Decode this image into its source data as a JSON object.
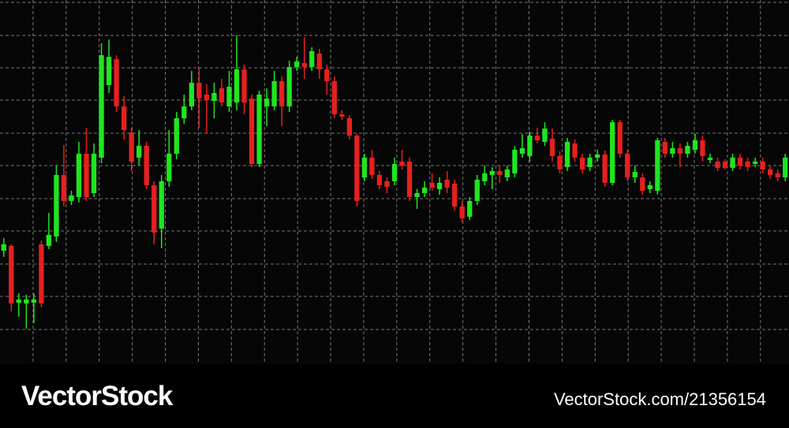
{
  "chart_data": {
    "type": "candlestick",
    "up_color": "#1fe61f",
    "down_color": "#e6201f",
    "background": "#060606",
    "grid": true,
    "xlim": [
      0,
      105
    ],
    "ylim": [
      0,
      462
    ],
    "xticks": [
      4.4,
      8.8,
      13.2,
      17.6,
      22,
      26.4,
      30.8,
      35.2,
      39.6,
      44,
      48.4,
      52.8,
      57.2,
      61.6,
      66,
      70.4,
      74.8,
      79.2,
      83.6,
      88,
      92.4,
      96.8,
      101.2
    ],
    "yticks": [
      44,
      86,
      127,
      169,
      210,
      252,
      293,
      335,
      376,
      417,
      459
    ],
    "open": [
      144,
      150,
      78,
      77,
      78,
      152,
      150,
      162,
      240,
      207,
      212,
      267,
      217,
      262,
      354,
      387,
      327,
      294,
      262,
      277,
      227,
      172,
      232,
      267,
      312,
      327,
      357,
      342,
      334,
      350,
      327,
      332,
      374,
      337,
      254,
      327,
      327,
      359,
      327,
      377,
      382,
      377,
      394,
      374,
      359,
      317,
      312,
      290,
      237,
      262,
      240,
      232,
      232,
      257,
      257,
      212,
      217,
      230,
      222,
      234,
      229,
      200,
      187,
      207,
      232,
      240,
      245,
      237,
      242,
      267,
      264,
      290,
      282,
      286,
      264,
      250,
      280,
      262,
      250,
      262,
      266,
      230,
      307,
      267,
      237,
      237,
      222,
      220,
      282,
      267,
      274,
      267,
      272,
      284,
      259,
      257,
      257,
      249,
      262,
      257,
      254,
      257,
      247,
      242,
      237
    ],
    "high": [
      160,
      152,
      90,
      88,
      90,
      157,
      192,
      252,
      278,
      220,
      282,
      300,
      280,
      407,
      412,
      392,
      340,
      300,
      297,
      282,
      232,
      240,
      297,
      320,
      342,
      372,
      375,
      355,
      357,
      362,
      372,
      417,
      380,
      342,
      347,
      350,
      372,
      365,
      385,
      390,
      415,
      402,
      400,
      380,
      365,
      322,
      316,
      292,
      267,
      272,
      245,
      237,
      262,
      272,
      262,
      222,
      232,
      242,
      237,
      245,
      234,
      207,
      212,
      240,
      252,
      250,
      252,
      252,
      277,
      292,
      295,
      300,
      307,
      299,
      270,
      287,
      285,
      267,
      267,
      272,
      271,
      310,
      310,
      272,
      252,
      242,
      232,
      287,
      287,
      282,
      280,
      282,
      292,
      290,
      267,
      262,
      260,
      267,
      267,
      262,
      262,
      262,
      252,
      247,
      267
    ],
    "low": [
      136,
      67,
      60,
      45,
      52,
      72,
      146,
      155,
      200,
      202,
      205,
      207,
      212,
      255,
      344,
      320,
      285,
      245,
      252,
      222,
      152,
      147,
      225,
      260,
      305,
      322,
      300,
      292,
      312,
      327,
      320,
      322,
      317,
      250,
      250,
      302,
      322,
      302,
      320,
      372,
      362,
      372,
      362,
      342,
      312,
      310,
      285,
      200,
      232,
      235,
      222,
      217,
      227,
      247,
      207,
      197,
      212,
      220,
      215,
      217,
      195,
      180,
      183,
      202,
      227,
      222,
      230,
      232,
      237,
      262,
      257,
      280,
      277,
      257,
      242,
      245,
      257,
      242,
      245,
      257,
      225,
      227,
      262,
      232,
      230,
      215,
      217,
      215,
      262,
      262,
      250,
      262,
      267,
      257,
      255,
      245,
      247,
      245,
      247,
      245,
      250,
      242,
      235,
      232,
      232
    ],
    "close": [
      152,
      77,
      82,
      82,
      82,
      77,
      164,
      240,
      207,
      214,
      267,
      212,
      267,
      392,
      390,
      327,
      297,
      257,
      277,
      227,
      167,
      232,
      267,
      312,
      327,
      357,
      337,
      335,
      344,
      332,
      352,
      374,
      332,
      254,
      342,
      337,
      359,
      327,
      377,
      384,
      377,
      397,
      374,
      359,
      317,
      314,
      290,
      207,
      262,
      240,
      227,
      225,
      254,
      252,
      212,
      217,
      224,
      224,
      230,
      224,
      200,
      185,
      207,
      234,
      242,
      245,
      240,
      247,
      272,
      274,
      290,
      284,
      299,
      264,
      247,
      282,
      262,
      247,
      262,
      266,
      230,
      307,
      267,
      237,
      244,
      220,
      227,
      284,
      267,
      274,
      267,
      277,
      284,
      264,
      262,
      249,
      249,
      262,
      252,
      250,
      257,
      247,
      240,
      237,
      262
    ]
  },
  "watermark": {
    "brand": "VectorStock",
    "reference": "VectorStock.com/21356154"
  }
}
